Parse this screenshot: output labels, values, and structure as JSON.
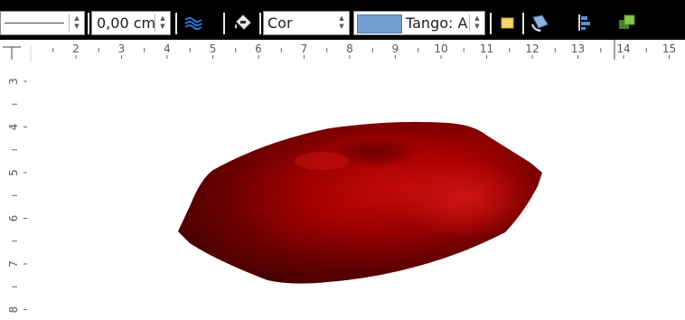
{
  "toolbar": {
    "line_width_value": "0,00 cm",
    "area_style_value": "Cor",
    "fill_color_value": "Tango: A",
    "fill_swatch_color": "#729fcf"
  },
  "ruler_h_numbers": [
    "2",
    "3",
    "4",
    "5",
    "6",
    "7",
    "8",
    "9",
    "10",
    "11",
    "12",
    "13",
    "14",
    "15"
  ],
  "ruler_v_numbers": [
    "3",
    "4",
    "5",
    "6",
    "7",
    "8"
  ],
  "object": {
    "shape": "3d-torus",
    "color": "#a80000"
  }
}
